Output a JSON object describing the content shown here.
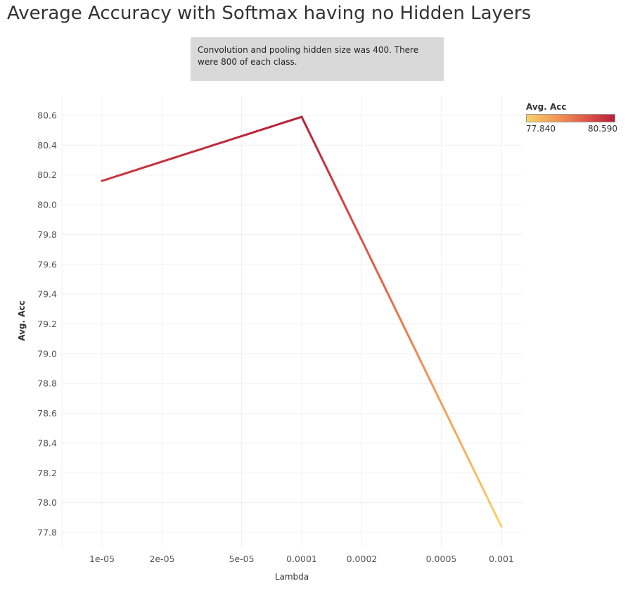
{
  "title": "Average Accuracy with Softmax having no Hidden Layers",
  "annotation": "Convolution and pooling hidden size was 400. There were 800 of each class.",
  "legend": {
    "title": "Avg. Acc",
    "min_label": "77.840",
    "max_label": "80.590",
    "color_low": "#f6d26b",
    "color_high": "#b8203a"
  },
  "chart_data": {
    "type": "line",
    "xlabel": "Lambda",
    "ylabel": "Avg. Acc",
    "x_scale": "log",
    "x_ticks": [
      1e-05,
      2e-05,
      5e-05,
      0.0001,
      0.0002,
      0.0005,
      0.001
    ],
    "x_tick_labels": [
      "1e-05",
      "2e-05",
      "5e-05",
      "0.0001",
      "0.0002",
      "0.0005",
      "0.001"
    ],
    "y_ticks": [
      77.8,
      78.0,
      78.2,
      78.4,
      78.6,
      78.8,
      79.0,
      79.2,
      79.4,
      79.6,
      79.8,
      80.0,
      80.2,
      80.4,
      80.6
    ],
    "y_tick_labels": [
      "77.8",
      "78.0",
      "78.2",
      "78.4",
      "78.6",
      "78.8",
      "79.0",
      "79.2",
      "79.4",
      "79.6",
      "79.8",
      "80.0",
      "80.2",
      "80.4",
      "80.6"
    ],
    "ylim": [
      77.7,
      80.7
    ],
    "grid": true,
    "legend_position": "top-right",
    "x": [
      1e-05,
      0.0001,
      0.001
    ],
    "y": [
      80.16,
      80.59,
      77.84
    ],
    "color_range": [
      77.84,
      80.59
    ]
  }
}
